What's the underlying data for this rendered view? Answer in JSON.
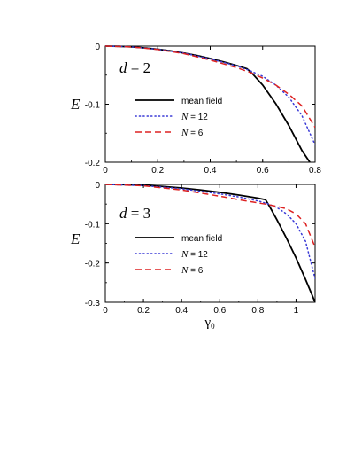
{
  "chart_data": [
    {
      "type": "line",
      "annotation": {
        "var": "d",
        "eq": " = ",
        "val": "2"
      },
      "ylabel": "E",
      "xlabel": "",
      "xlim": [
        0,
        0.8
      ],
      "ylim": [
        -0.2,
        0
      ],
      "xticks": [
        0,
        0.2,
        0.4,
        0.6,
        0.8
      ],
      "xtick_labels": [
        "0",
        "0.2",
        "0.4",
        "0.6",
        "0.8"
      ],
      "yticks": [
        0,
        -0.1,
        -0.2
      ],
      "ytick_labels": [
        "0",
        "-0.1",
        "-0.2"
      ],
      "legend_position": "center-left",
      "series": [
        {
          "name": "mean field",
          "color": "#000000",
          "style": "solid",
          "x": [
            0,
            0.05,
            0.1,
            0.15,
            0.2,
            0.25,
            0.3,
            0.35,
            0.4,
            0.45,
            0.5,
            0.54,
            0.56,
            0.6,
            0.65,
            0.7,
            0.75,
            0.78
          ],
          "y": [
            0,
            -0.0003,
            -0.0013,
            -0.003,
            -0.0053,
            -0.0083,
            -0.012,
            -0.0163,
            -0.0213,
            -0.027,
            -0.0333,
            -0.039,
            -0.047,
            -0.067,
            -0.099,
            -0.137,
            -0.18,
            -0.2
          ]
        },
        {
          "name": "N = 12",
          "color": "#3a3ad6",
          "style": "dotted",
          "x": [
            0,
            0.1,
            0.2,
            0.3,
            0.4,
            0.5,
            0.55,
            0.6,
            0.65,
            0.7,
            0.75,
            0.8
          ],
          "y": [
            0,
            -0.0013,
            -0.0054,
            -0.012,
            -0.022,
            -0.034,
            -0.042,
            -0.052,
            -0.067,
            -0.088,
            -0.12,
            -0.17
          ]
        },
        {
          "name": "N = 6",
          "color": "#dd2222",
          "style": "dashed",
          "x": [
            0,
            0.1,
            0.2,
            0.3,
            0.4,
            0.5,
            0.55,
            0.6,
            0.65,
            0.7,
            0.75,
            0.8
          ],
          "y": [
            0,
            -0.0014,
            -0.0058,
            -0.013,
            -0.024,
            -0.037,
            -0.045,
            -0.055,
            -0.067,
            -0.083,
            -0.103,
            -0.14
          ]
        }
      ]
    },
    {
      "type": "line",
      "annotation": {
        "var": "d",
        "eq": " = ",
        "val": "3"
      },
      "ylabel": "E",
      "xlabel": "γ",
      "xlabel_sub": "0",
      "xlim": [
        0,
        1.1
      ],
      "ylim": [
        -0.3,
        0
      ],
      "xticks": [
        0,
        0.2,
        0.4,
        0.6,
        0.8,
        1.0
      ],
      "xtick_labels": [
        "0",
        "0.2",
        "0.4",
        "0.6",
        "0.8",
        "1"
      ],
      "yticks": [
        0,
        -0.1,
        -0.2,
        -0.3
      ],
      "ytick_labels": [
        "0",
        "-0.1",
        "-0.2",
        "-0.3"
      ],
      "legend_position": "center-left",
      "series": [
        {
          "name": "mean field",
          "color": "#000000",
          "style": "solid",
          "x": [
            0,
            0.1,
            0.2,
            0.3,
            0.4,
            0.5,
            0.6,
            0.7,
            0.8,
            0.84,
            0.86,
            0.9,
            0.95,
            1.0,
            1.05,
            1.1
          ],
          "y": [
            0,
            -0.0005,
            -0.0022,
            -0.005,
            -0.009,
            -0.014,
            -0.02,
            -0.027,
            -0.035,
            -0.039,
            -0.055,
            -0.09,
            -0.137,
            -0.187,
            -0.242,
            -0.3
          ]
        },
        {
          "name": "N = 12",
          "color": "#3a3ad6",
          "style": "dotted",
          "x": [
            0,
            0.2,
            0.4,
            0.6,
            0.7,
            0.8,
            0.85,
            0.9,
            0.95,
            1.0,
            1.05,
            1.1
          ],
          "y": [
            0,
            -0.003,
            -0.011,
            -0.024,
            -0.032,
            -0.042,
            -0.049,
            -0.059,
            -0.075,
            -0.1,
            -0.145,
            -0.24
          ]
        },
        {
          "name": "N = 6",
          "color": "#dd2222",
          "style": "dashed",
          "x": [
            0,
            0.2,
            0.4,
            0.6,
            0.7,
            0.8,
            0.85,
            0.9,
            0.95,
            1.0,
            1.05,
            1.1
          ],
          "y": [
            0,
            -0.0035,
            -0.014,
            -0.03,
            -0.039,
            -0.047,
            -0.051,
            -0.056,
            -0.062,
            -0.075,
            -0.1,
            -0.16
          ]
        }
      ]
    }
  ]
}
